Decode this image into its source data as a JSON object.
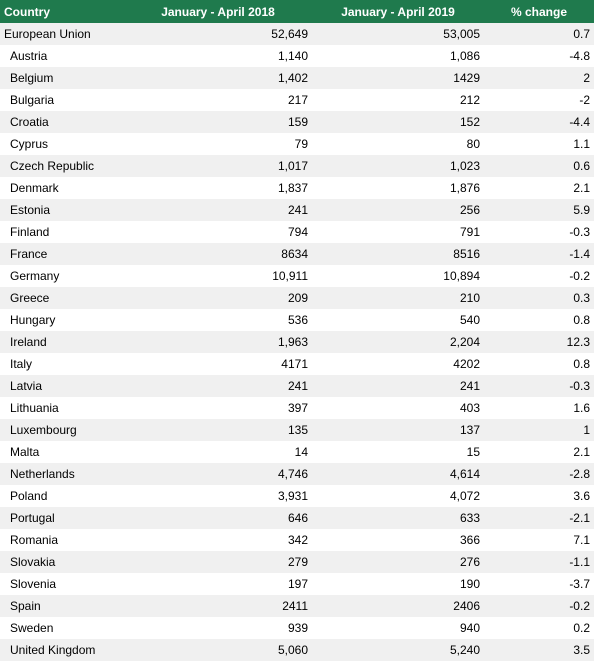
{
  "table": {
    "headers": [
      "Country",
      "January - April 2018",
      "January - April 2019",
      "% change"
    ],
    "rows": [
      [
        "European Union",
        "52,649",
        "53,005",
        "0.7"
      ],
      [
        "Austria",
        "1,140",
        "1,086",
        "-4.8"
      ],
      [
        "Belgium",
        "1,402",
        "1429",
        "2"
      ],
      [
        "Bulgaria",
        "217",
        "212",
        "-2"
      ],
      [
        "Croatia",
        "159",
        "152",
        "-4.4"
      ],
      [
        "Cyprus",
        "79",
        "80",
        "1.1"
      ],
      [
        "Czech Republic",
        "1,017",
        "1,023",
        "0.6"
      ],
      [
        "Denmark",
        "1,837",
        "1,876",
        "2.1"
      ],
      [
        "Estonia",
        "241",
        "256",
        "5.9"
      ],
      [
        "Finland",
        "794",
        "791",
        "-0.3"
      ],
      [
        "France",
        "8634",
        "8516",
        "-1.4"
      ],
      [
        "Germany",
        "10,911",
        "10,894",
        "-0.2"
      ],
      [
        "Greece",
        "209",
        "210",
        "0.3"
      ],
      [
        "Hungary",
        "536",
        "540",
        "0.8"
      ],
      [
        "Ireland",
        "1,963",
        "2,204",
        "12.3"
      ],
      [
        "Italy",
        "4171",
        "4202",
        "0.8"
      ],
      [
        "Latvia",
        "241",
        "241",
        "-0.3"
      ],
      [
        "Lithuania",
        "397",
        "403",
        "1.6"
      ],
      [
        "Luxembourg",
        "135",
        "137",
        "1"
      ],
      [
        "Malta",
        "14",
        "15",
        "2.1"
      ],
      [
        "Netherlands",
        "4,746",
        "4,614",
        "-2.8"
      ],
      [
        "Poland",
        "3,931",
        "4,072",
        "3.6"
      ],
      [
        "Portugal",
        "646",
        "633",
        "-2.1"
      ],
      [
        "Romania",
        "342",
        "366",
        "7.1"
      ],
      [
        "Slovakia",
        "279",
        "276",
        "-1.1"
      ],
      [
        "Slovenia",
        "197",
        "190",
        "-3.7"
      ],
      [
        "Spain",
        "2411",
        "2406",
        "-0.2"
      ],
      [
        "Sweden",
        "939",
        "940",
        "0.2"
      ],
      [
        "United Kingdom",
        "5,060",
        "5,240",
        "3.5"
      ]
    ]
  },
  "colors": {
    "header_bg": "#1f7a4d",
    "header_text": "#ffffff",
    "stripe": "#f0f0f0"
  }
}
